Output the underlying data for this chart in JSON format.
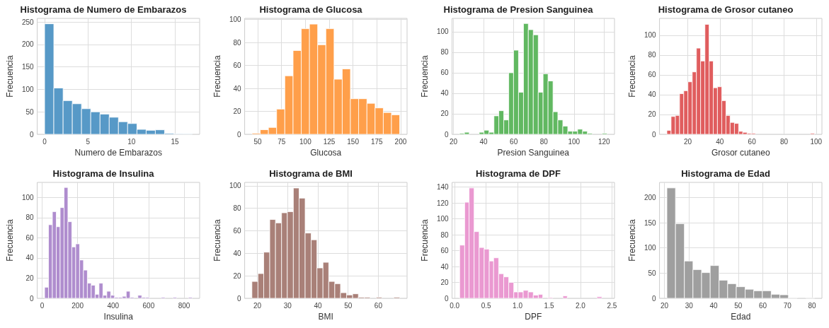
{
  "chart_data": [
    {
      "type": "histogram",
      "title": "Histograma de Numero de Embarazos",
      "xlabel": "Numero de Embarazos",
      "ylabel": "Frecuencia",
      "color": "#5799c7",
      "grid": true,
      "bins": [
        0,
        1.06,
        2.13,
        3.19,
        4.25,
        5.31,
        6.38,
        7.44,
        8.5,
        9.56,
        10.63,
        11.69,
        12.75,
        13.81,
        14.88,
        15.94,
        17
      ],
      "values": [
        246,
        103,
        75,
        68,
        57,
        50,
        45,
        38,
        28,
        24,
        11,
        9,
        10,
        2,
        1,
        1
      ],
      "xlim": [
        -0.85,
        17.85
      ],
      "xticks": [
        0,
        5,
        10,
        15
      ],
      "ylim": [
        0,
        258
      ],
      "yticks": [
        0,
        50,
        100,
        150,
        200,
        250
      ]
    },
    {
      "type": "histogram",
      "title": "Histograma de Glucosa",
      "xlabel": "Glucosa",
      "ylabel": "Frecuencia",
      "color": "#ff9f4a",
      "grid": true,
      "bins": [
        44,
        52.6,
        61.2,
        69.8,
        78.4,
        87.1,
        95.7,
        104.3,
        112.9,
        121.5,
        130.1,
        138.7,
        147.3,
        155.9,
        164.6,
        173.2,
        181.8,
        190.4,
        199
      ],
      "values": [
        1,
        4,
        6,
        22,
        51,
        73,
        92,
        96,
        78,
        92,
        48,
        57,
        31,
        31,
        27,
        23,
        19,
        17
      ],
      "xlim": [
        36.25,
        206.75
      ],
      "xticks": [
        50,
        75,
        100,
        125,
        150,
        175,
        200
      ],
      "ylim": [
        0,
        101
      ],
      "yticks": [
        0,
        20,
        40,
        60,
        80,
        100
      ]
    },
    {
      "type": "histogram",
      "title": "Histograma de Presion Sanguinea",
      "xlabel": "Presion Sanguinea",
      "ylabel": "Frecuencia",
      "color": "#61b861",
      "grid": true,
      "bins": [
        24,
        27.3,
        30.5,
        37.1,
        40.3,
        43.6,
        46.9,
        50.1,
        53.4,
        56.7,
        59.9,
        63.2,
        66.5,
        69.7,
        73,
        76.3,
        79.5,
        82.8,
        86.1,
        89.3,
        92.6,
        95.9,
        99.1,
        102.4,
        105.7,
        108.9,
        112.2,
        118.7,
        122
      ],
      "values": [
        1,
        2,
        0,
        2,
        4,
        2,
        18,
        23,
        14,
        60,
        82,
        41,
        108,
        102,
        97,
        41,
        59,
        52,
        22,
        14,
        8,
        3,
        3,
        5,
        3,
        1,
        0,
        1
      ],
      "xlim": [
        19.1,
        126.9
      ],
      "xticks": [
        20,
        40,
        60,
        80,
        100,
        120
      ],
      "ylim": [
        0,
        113
      ],
      "yticks": [
        0,
        20,
        40,
        60,
        80,
        100
      ]
    },
    {
      "type": "histogram",
      "title": "Histograma de Grosor cutaneo",
      "xlabel": "Grosor cutaneo",
      "ylabel": "Frecuencia",
      "color": "#e05d5e",
      "grid": true,
      "bins": [
        7,
        9.6,
        12.3,
        14.9,
        17.5,
        20.1,
        22.8,
        25.4,
        28,
        30.7,
        33.3,
        35.9,
        38.5,
        41.2,
        43.8,
        46.4,
        49.1,
        51.7,
        54.3,
        57,
        59.6,
        62.2,
        96.4,
        99
      ],
      "values": [
        4,
        18,
        19,
        41,
        44,
        53,
        63,
        87,
        74,
        111,
        74,
        47,
        48,
        34,
        19,
        12,
        11,
        3,
        2,
        1,
        1,
        0,
        1
      ],
      "xlim": [
        2.4,
        103.6
      ],
      "xticks": [
        20,
        40,
        60,
        80,
        100
      ],
      "ylim": [
        0,
        117
      ],
      "yticks": [
        0,
        20,
        40,
        60,
        80,
        100
      ]
    },
    {
      "type": "histogram",
      "title": "Histograma de Insulina",
      "xlabel": "Insulina",
      "ylabel": "Frecuencia",
      "color": "#af8dce",
      "grid": true,
      "bins": [
        14,
        35.9,
        57.8,
        79.7,
        101.6,
        123.5,
        145.4,
        167.3,
        189.2,
        211.1,
        233,
        254.9,
        276.8,
        298.7,
        320.6,
        342.5,
        364.4,
        386.3,
        408.2,
        430.1,
        452,
        473.9,
        495.8,
        517.7,
        539.6,
        561.5,
        583.4,
        605.3,
        671,
        692.9,
        736.7,
        758.6,
        824.3,
        846
      ],
      "values": [
        11,
        73,
        86,
        71,
        90,
        110,
        76,
        51,
        54,
        38,
        28,
        15,
        13,
        4,
        15,
        3,
        7,
        3,
        1,
        1,
        2,
        7,
        1,
        0,
        3,
        1,
        1,
        0,
        1,
        0,
        1,
        0,
        1
      ],
      "xlim": [
        -27.6,
        887.6
      ],
      "xticks": [
        0,
        200,
        400,
        600,
        800
      ],
      "ylim": [
        0,
        115
      ],
      "yticks": [
        0,
        20,
        40,
        60,
        80,
        100
      ]
    },
    {
      "type": "histogram",
      "title": "Histograma de BMI",
      "xlabel": "BMI",
      "ylabel": "Frecuencia",
      "color": "#a98078",
      "grid": true,
      "bins": [
        18.2,
        20.2,
        22.1,
        24.1,
        26,
        28,
        29.9,
        31.9,
        33.8,
        35.8,
        37.8,
        39.7,
        41.7,
        43.6,
        45.6,
        47.5,
        49.5,
        51.5,
        53.4,
        55.4,
        57.3,
        59.3,
        61.2,
        65.1,
        67.1
      ],
      "values": [
        15,
        22,
        41,
        70,
        67,
        76,
        77,
        98,
        89,
        58,
        52,
        27,
        32,
        15,
        13,
        5,
        3,
        4,
        1,
        1,
        0,
        1,
        0,
        1
      ],
      "xlim": [
        15.8,
        69.5
      ],
      "xticks": [
        20,
        30,
        40,
        50,
        60
      ],
      "ylim": [
        0,
        103
      ],
      "yticks": [
        0,
        20,
        40,
        60,
        80,
        100
      ]
    },
    {
      "type": "histogram",
      "title": "Histograma de DPF",
      "xlabel": "DPF",
      "ylabel": "Frecuencia",
      "color": "#ea99d1",
      "grid": true,
      "bins": [
        0.08,
        0.16,
        0.23,
        0.31,
        0.39,
        0.47,
        0.55,
        0.62,
        0.7,
        0.78,
        0.86,
        0.94,
        1.01,
        1.09,
        1.17,
        1.25,
        1.33,
        1.4,
        1.48,
        1.56,
        1.72,
        1.79,
        2.26,
        2.34
      ],
      "values": [
        67,
        121,
        139,
        84,
        64,
        62,
        47,
        51,
        31,
        27,
        20,
        8,
        8,
        10,
        8,
        4,
        5,
        0,
        1,
        0,
        3,
        0,
        2
      ],
      "xlim": [
        -0.04,
        2.54
      ],
      "xticks": [
        {
          "value": 0,
          "label": "0.0"
        },
        0.5,
        {
          "value": 1,
          "label": "1.0"
        },
        1.5,
        {
          "value": 2,
          "label": "2.0"
        },
        2.5
      ],
      "ylim": [
        0,
        146
      ],
      "yticks": [
        0,
        20,
        40,
        60,
        80,
        100,
        120,
        140
      ]
    },
    {
      "type": "histogram",
      "title": "Histograma de Edad",
      "xlabel": "Edad",
      "ylabel": "Frecuencia",
      "color": "#9f9f9f",
      "grid": true,
      "bins": [
        21,
        24.5,
        28.1,
        31.6,
        35.1,
        38.6,
        42.2,
        45.7,
        49.2,
        52.8,
        56.3,
        59.8,
        63.4,
        66.9,
        70.4,
        73.9,
        77.5,
        81
      ],
      "values": [
        219,
        148,
        74,
        57,
        51,
        65,
        36,
        29,
        23,
        18,
        15,
        15,
        8,
        7,
        1,
        0,
        1
      ],
      "xlim": [
        18,
        84
      ],
      "xticks": [
        20,
        30,
        40,
        50,
        60,
        70,
        80
      ],
      "ylim": [
        0,
        230
      ],
      "yticks": [
        0,
        50,
        100,
        150,
        200
      ]
    }
  ]
}
